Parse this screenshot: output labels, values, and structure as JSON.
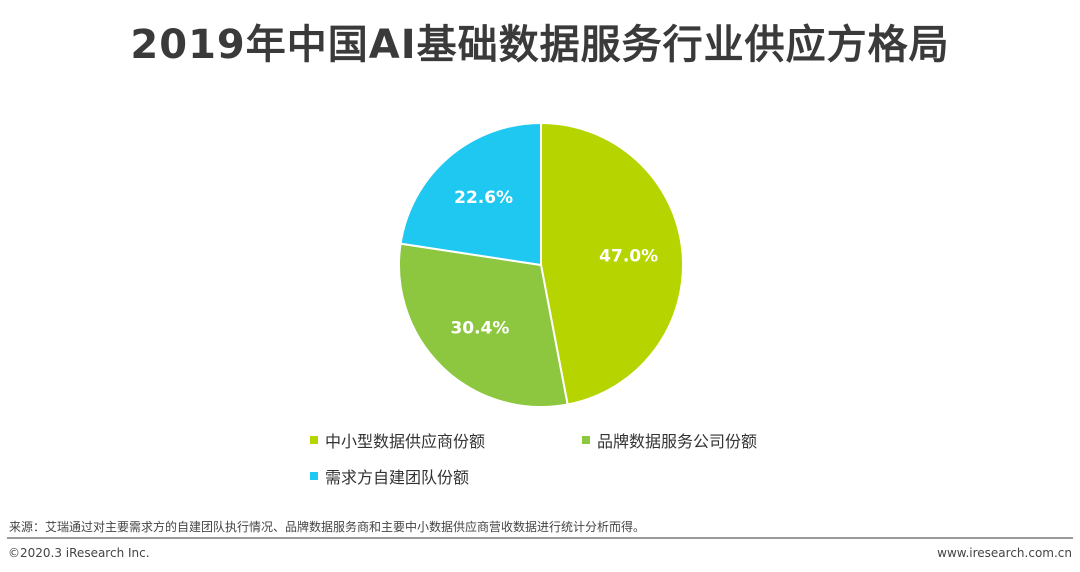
{
  "chart_data": {
    "type": "pie",
    "title": "2019年中国AI基础数据服务行业供应方格局",
    "categories": [
      "中小型数据供应商份额",
      "品牌数据服务公司份额",
      "需求方自建团队份额"
    ],
    "values": [
      47.0,
      30.4,
      22.6
    ],
    "labels": [
      "47.0%",
      "30.4%",
      "22.6%"
    ],
    "colors": [
      "#b5d400",
      "#8dc63f",
      "#1ec8f0"
    ],
    "legend_position": "bottom"
  },
  "footer": {
    "source": "来源：艾瑞通过对主要需求方的自建团队执行情况、品牌数据服务商和主要中小数据供应商营收数据进行统计分析而得。",
    "copyright": "©2020.3 iResearch Inc.",
    "website": "www.iresearch.com.cn"
  }
}
